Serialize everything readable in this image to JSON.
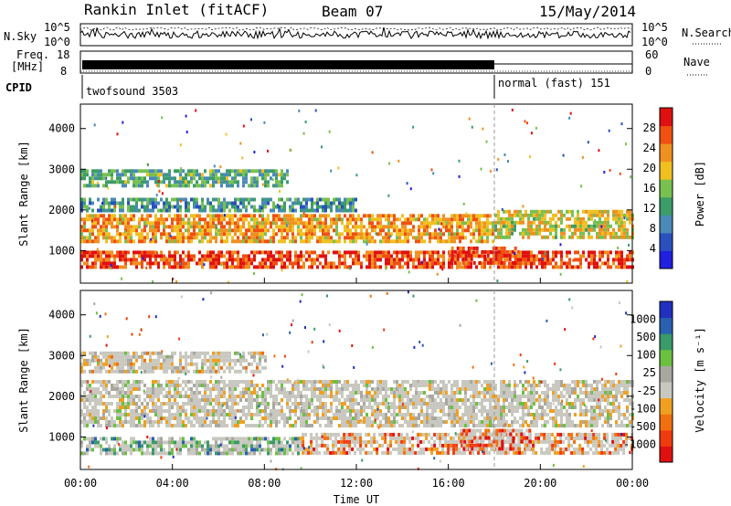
{
  "header": {
    "radar": "Rankin Inlet (fitACF)",
    "beam": "Beam 07",
    "date": "15/May/2014"
  },
  "top_panels": {
    "nsky_label": "N.Sky",
    "nsky_ticks": [
      "10^5",
      "10^0"
    ],
    "nsearch_label": "N.Search",
    "nsearch_ticks": [
      "10^5",
      "10^0"
    ],
    "freq_label": "Freq.",
    "freq_units": "[MHz]",
    "freq_ticks": [
      "18",
      "8"
    ],
    "nave_label": "Nave",
    "nave_ticks": [
      "60",
      "0"
    ],
    "cpid_label": "CPID",
    "cpid_segments": [
      {
        "label": "twofsound 3503",
        "start_h": 0,
        "end_h": 18
      },
      {
        "label": "normal (fast) 151",
        "start_h": 18,
        "end_h": 24
      }
    ]
  },
  "colors": {
    "power": [
      "#2020e0",
      "#2a50c0",
      "#4a8ab8",
      "#3c9c6a",
      "#78c050",
      "#f0c020",
      "#f09020",
      "#f05010",
      "#e01010"
    ],
    "velocity": [
      "#e01010",
      "#f03a10",
      "#f07010",
      "#f0a020",
      "#c8c8c0",
      "#a8a8a0",
      "#6cc040",
      "#3a9a6a",
      "#2a60b0",
      "#2030c0"
    ],
    "gray": "#c8c8c0"
  },
  "chart_data": [
    {
      "type": "heatmap",
      "name": "power",
      "title": "",
      "ylabel": "Slant Range [km]",
      "ylim": [
        200,
        4600
      ],
      "yticks": [
        "1000",
        "2000",
        "3000",
        "4000"
      ],
      "xlim": [
        0,
        24
      ],
      "colorbar_label": "Power [dB]",
      "colorbar_range": [
        0,
        32
      ],
      "colorbar_ticks": [
        "4",
        "8",
        "12",
        "16",
        "20",
        "24",
        "28"
      ],
      "bands": [
        {
          "start_h": 0.0,
          "end_h": 24.0,
          "low_km": 600,
          "high_km": 1000,
          "level": 0.85
        },
        {
          "start_h": 0.0,
          "end_h": 18.0,
          "low_km": 1200,
          "high_km": 1900,
          "level": 0.7
        },
        {
          "start_h": 0.0,
          "end_h": 12.0,
          "low_km": 2000,
          "high_km": 2300,
          "level": 0.35
        },
        {
          "start_h": 0.0,
          "end_h": 9.0,
          "low_km": 2600,
          "high_km": 3000,
          "level": 0.4
        },
        {
          "start_h": 18.0,
          "end_h": 24.0,
          "low_km": 1300,
          "high_km": 2000,
          "level": 0.6
        },
        {
          "start_h": 16.0,
          "end_h": 19.0,
          "low_km": 700,
          "high_km": 1100,
          "level": 0.9
        }
      ]
    },
    {
      "type": "heatmap",
      "name": "velocity",
      "title": "",
      "xlabel": "Time UT",
      "ylabel": "Slant Range [km]",
      "ylim": [
        200,
        4600
      ],
      "yticks": [
        "1000",
        "2000",
        "3000",
        "4000"
      ],
      "xlim": [
        0,
        24
      ],
      "xticks": [
        "00:00",
        "04:00",
        "08:00",
        "12:00",
        "16:00",
        "20:00",
        "00:00"
      ],
      "colorbar_label": "Velocity [m s⁻¹]",
      "colorbar_ticks": [
        "1000",
        "500",
        "100",
        "25",
        "-25",
        "-100",
        "-500",
        "-1000"
      ],
      "bands": [
        {
          "start_h": 0.0,
          "end_h": 9.5,
          "low_km": 600,
          "high_km": 1000,
          "level": 0.7
        },
        {
          "start_h": 9.5,
          "end_h": 24.0,
          "low_km": 600,
          "high_km": 1100,
          "level": 0.25
        },
        {
          "start_h": 0.0,
          "end_h": 24.0,
          "low_km": 1300,
          "high_km": 2400,
          "level": 0.48
        },
        {
          "start_h": 16.5,
          "end_h": 19.5,
          "low_km": 700,
          "high_km": 1200,
          "level": 0.15
        },
        {
          "start_h": 0.0,
          "end_h": 8.0,
          "low_km": 2600,
          "high_km": 3100,
          "level": 0.45
        }
      ]
    }
  ]
}
